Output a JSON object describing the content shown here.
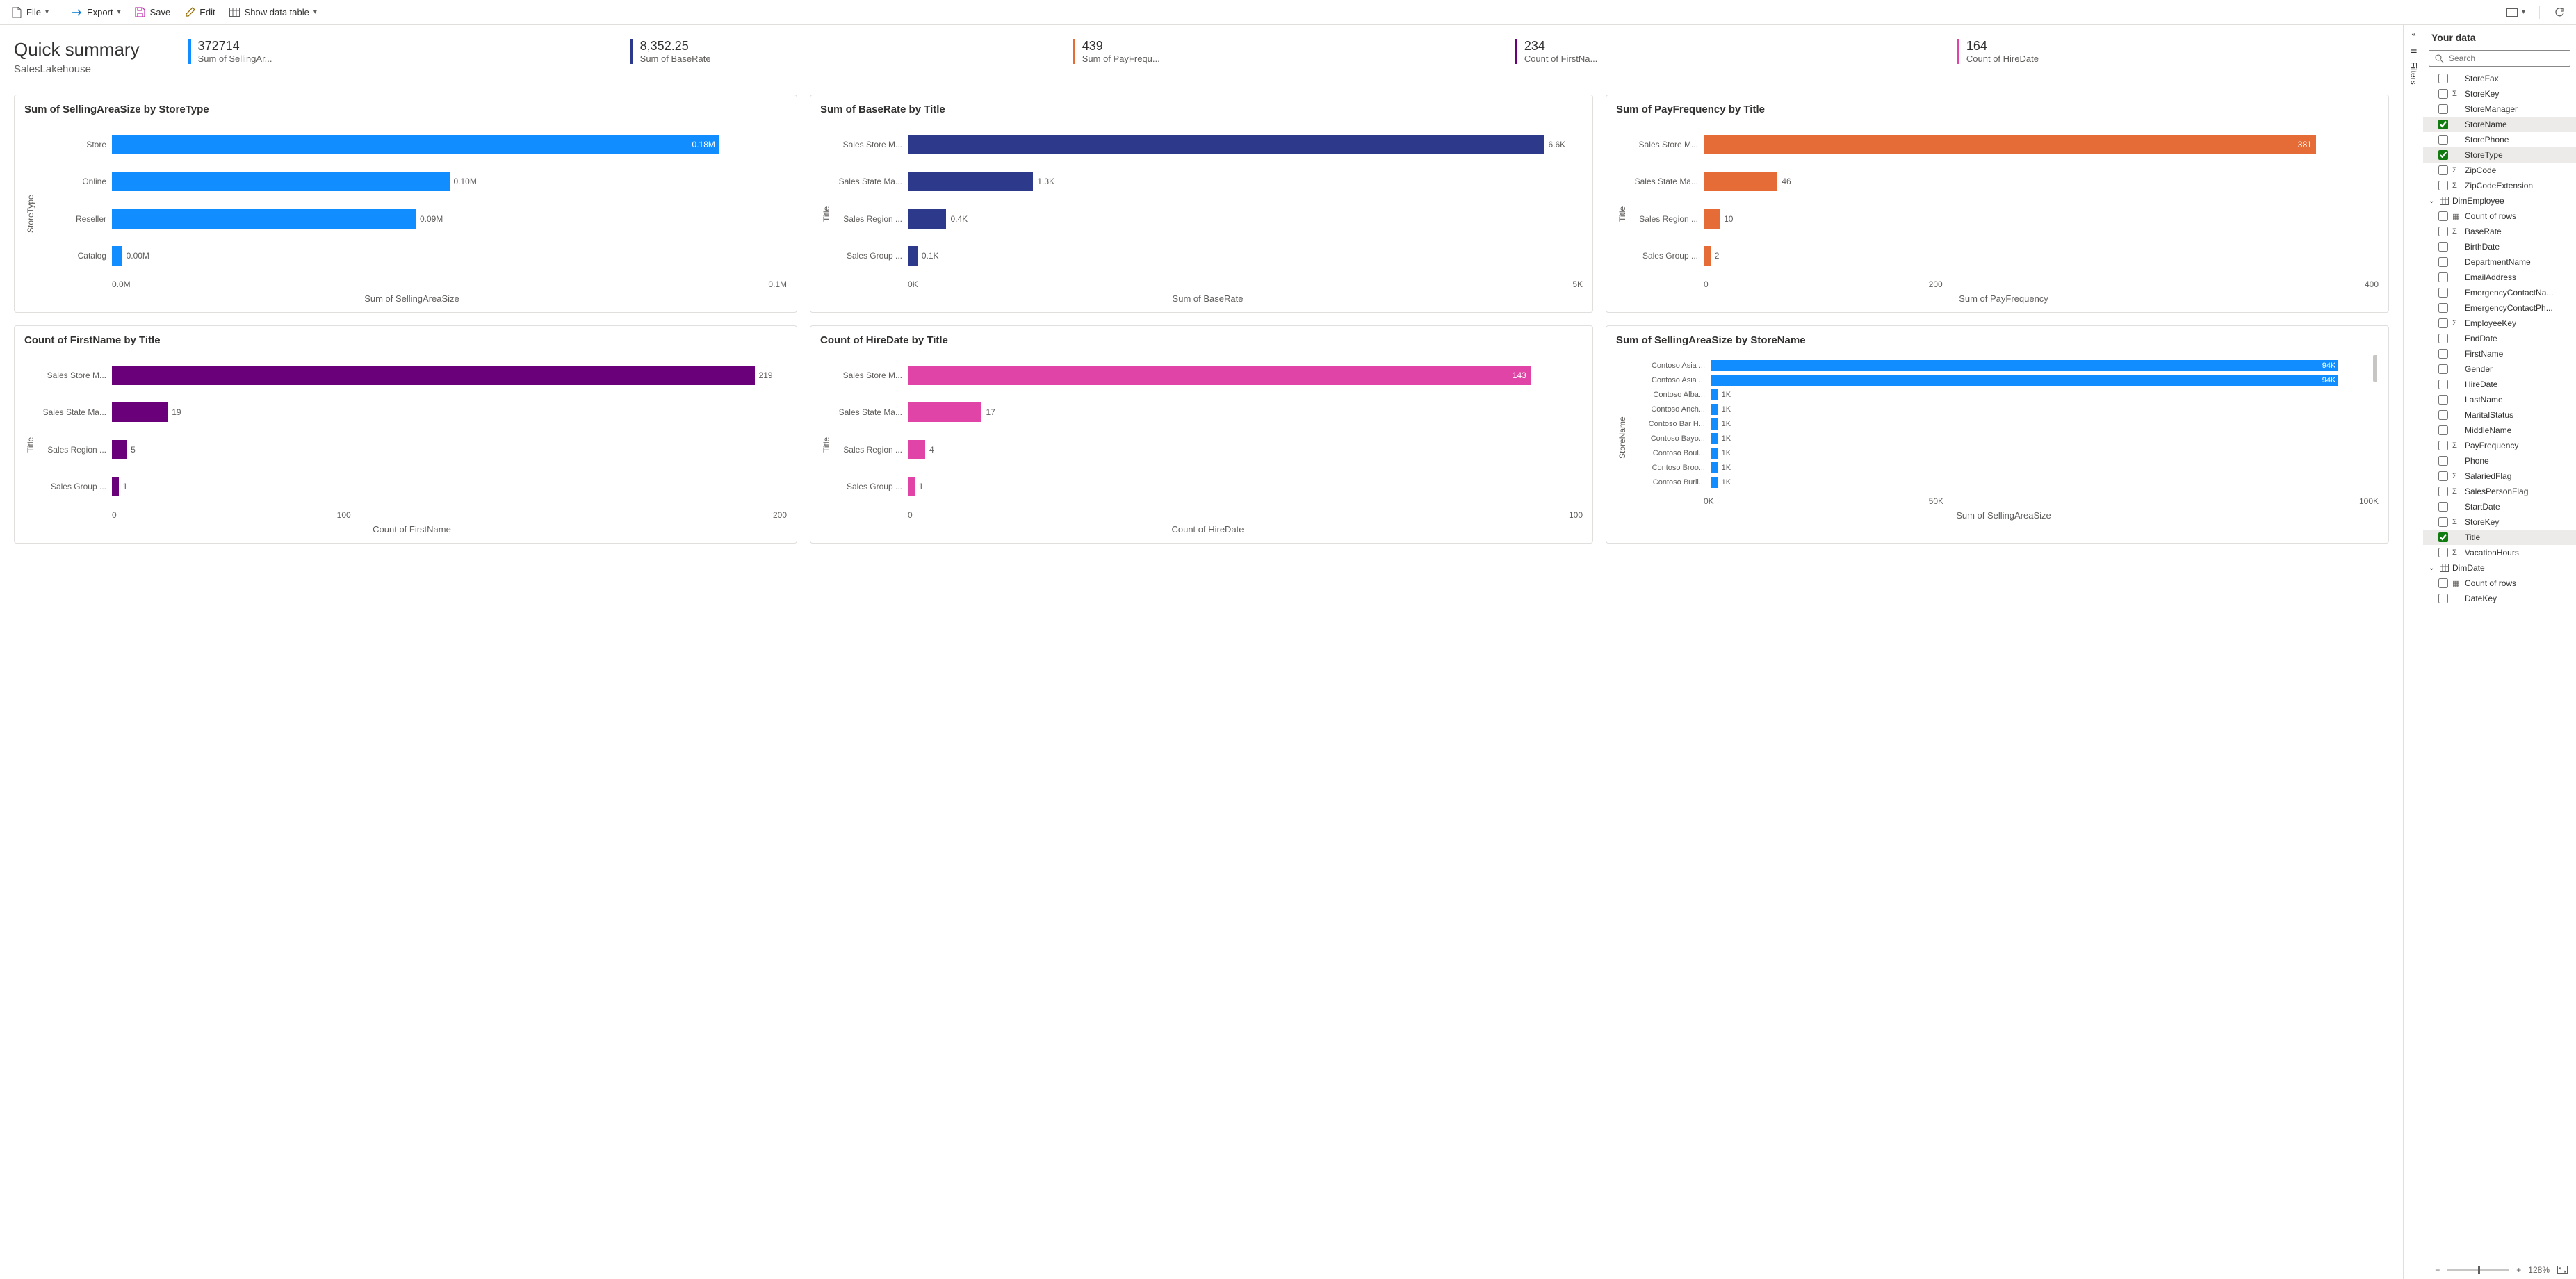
{
  "toolbar": {
    "file": "File",
    "export": "Export",
    "save": "Save",
    "edit": "Edit",
    "show_table": "Show data table"
  },
  "collapsed_panel": {
    "filters_label": "Filters"
  },
  "header": {
    "title": "Quick summary",
    "subtitle": "SalesLakehouse"
  },
  "kpis": [
    {
      "value": "372714",
      "label": "Sum of SellingAr...",
      "color": "#118dff"
    },
    {
      "value": "8,352.25",
      "label": "Sum of BaseRate",
      "color": "#2d3a8c"
    },
    {
      "value": "439",
      "label": "Sum of PayFrequ...",
      "color": "#e66c37"
    },
    {
      "value": "234",
      "label": "Count of FirstNa...",
      "color": "#6b007b"
    },
    {
      "value": "164",
      "label": "Count of HireDate",
      "color": "#e044a7"
    }
  ],
  "charts": [
    {
      "title": "Sum of SellingAreaSize by StoreType",
      "y_axis": "StoreType",
      "x_axis": "Sum of SellingAreaSize",
      "color": "#118dff",
      "max": 0.2,
      "ticks": [
        "0.0M",
        "0.1M"
      ],
      "bars": [
        {
          "cat": "Store",
          "val": 0.18,
          "label": "0.18M",
          "inside": true
        },
        {
          "cat": "Online",
          "val": 0.1,
          "label": "0.10M",
          "inside": false
        },
        {
          "cat": "Reseller",
          "val": 0.09,
          "label": "0.09M",
          "inside": false
        },
        {
          "cat": "Catalog",
          "val": 0.003,
          "label": "0.00M",
          "inside": false
        }
      ]
    },
    {
      "title": "Sum of BaseRate by Title",
      "y_axis": "Title",
      "x_axis": "Sum of BaseRate",
      "color": "#2d3a8c",
      "max": 7.0,
      "ticks": [
        "0K",
        "5K"
      ],
      "bars": [
        {
          "cat": "Sales Store M...",
          "val": 6.6,
          "label": "6.6K",
          "inside": false
        },
        {
          "cat": "Sales State Ma...",
          "val": 1.3,
          "label": "1.3K",
          "inside": false
        },
        {
          "cat": "Sales Region ...",
          "val": 0.4,
          "label": "0.4K",
          "inside": false
        },
        {
          "cat": "Sales Group ...",
          "val": 0.1,
          "label": "0.1K",
          "inside": false
        }
      ]
    },
    {
      "title": "Sum of PayFrequency by Title",
      "y_axis": "Title",
      "x_axis": "Sum of PayFrequency",
      "color": "#e66c37",
      "max": 420,
      "ticks": [
        "0",
        "200",
        "400"
      ],
      "bars": [
        {
          "cat": "Sales Store M...",
          "val": 381,
          "label": "381",
          "inside": true
        },
        {
          "cat": "Sales State Ma...",
          "val": 46,
          "label": "46",
          "inside": false
        },
        {
          "cat": "Sales Region ...",
          "val": 10,
          "label": "10",
          "inside": false
        },
        {
          "cat": "Sales Group ...",
          "val": 2,
          "label": "2",
          "inside": false
        }
      ]
    },
    {
      "title": "Count of FirstName by Title",
      "y_axis": "Title",
      "x_axis": "Count of FirstName",
      "color": "#6b007b",
      "max": 230,
      "ticks": [
        "0",
        "100",
        "200"
      ],
      "bars": [
        {
          "cat": "Sales Store M...",
          "val": 219,
          "label": "219",
          "inside": false
        },
        {
          "cat": "Sales State Ma...",
          "val": 19,
          "label": "19",
          "inside": false
        },
        {
          "cat": "Sales Region ...",
          "val": 5,
          "label": "5",
          "inside": false
        },
        {
          "cat": "Sales Group ...",
          "val": 1,
          "label": "1",
          "inside": false
        }
      ]
    },
    {
      "title": "Count of HireDate by Title",
      "y_axis": "Title",
      "x_axis": "Count of HireDate",
      "color": "#e044a7",
      "max": 155,
      "ticks": [
        "0",
        "100"
      ],
      "bars": [
        {
          "cat": "Sales Store M...",
          "val": 143,
          "label": "143",
          "inside": true
        },
        {
          "cat": "Sales State Ma...",
          "val": 17,
          "label": "17",
          "inside": false
        },
        {
          "cat": "Sales Region ...",
          "val": 4,
          "label": "4",
          "inside": false
        },
        {
          "cat": "Sales Group ...",
          "val": 1,
          "label": "1",
          "inside": false
        }
      ]
    },
    {
      "title": "Sum of SellingAreaSize by StoreName",
      "y_axis": "StoreName",
      "x_axis": "Sum of SellingAreaSize",
      "color": "#118dff",
      "max": 100,
      "small": true,
      "scroll": true,
      "ticks": [
        "0K",
        "50K",
        "100K"
      ],
      "bars": [
        {
          "cat": "Contoso Asia ...",
          "val": 94,
          "label": "94K",
          "inside": true
        },
        {
          "cat": "Contoso Asia ...",
          "val": 94,
          "label": "94K",
          "inside": true
        },
        {
          "cat": "Contoso Alba...",
          "val": 1,
          "label": "1K",
          "inside": false
        },
        {
          "cat": "Contoso Anch...",
          "val": 1,
          "label": "1K",
          "inside": false
        },
        {
          "cat": "Contoso Bar H...",
          "val": 1,
          "label": "1K",
          "inside": false
        },
        {
          "cat": "Contoso Bayo...",
          "val": 1,
          "label": "1K",
          "inside": false
        },
        {
          "cat": "Contoso Boul...",
          "val": 1,
          "label": "1K",
          "inside": false
        },
        {
          "cat": "Contoso Broo...",
          "val": 1,
          "label": "1K",
          "inside": false
        },
        {
          "cat": "Contoso Burli...",
          "val": 1,
          "label": "1K",
          "inside": false
        }
      ]
    }
  ],
  "data_panel": {
    "title": "Your data",
    "search_placeholder": "Search",
    "fields": [
      {
        "type": "field",
        "label": "StoreFax",
        "checked": false,
        "sigma": false,
        "indent": 2
      },
      {
        "type": "field",
        "label": "StoreKey",
        "checked": false,
        "sigma": true,
        "indent": 2
      },
      {
        "type": "field",
        "label": "StoreManager",
        "checked": false,
        "sigma": false,
        "indent": 2
      },
      {
        "type": "field",
        "label": "StoreName",
        "checked": true,
        "sigma": false,
        "indent": 2,
        "selected": true
      },
      {
        "type": "field",
        "label": "StorePhone",
        "checked": false,
        "sigma": false,
        "indent": 2
      },
      {
        "type": "field",
        "label": "StoreType",
        "checked": true,
        "sigma": false,
        "indent": 2,
        "selected": true
      },
      {
        "type": "field",
        "label": "ZipCode",
        "checked": false,
        "sigma": true,
        "indent": 2
      },
      {
        "type": "field",
        "label": "ZipCodeExtension",
        "checked": false,
        "sigma": true,
        "indent": 2
      },
      {
        "type": "table",
        "label": "DimEmployee"
      },
      {
        "type": "field",
        "label": "Count of rows",
        "checked": false,
        "sigma": false,
        "calc": true,
        "indent": 2
      },
      {
        "type": "field",
        "label": "BaseRate",
        "checked": false,
        "sigma": true,
        "indent": 2
      },
      {
        "type": "field",
        "label": "BirthDate",
        "checked": false,
        "sigma": false,
        "indent": 2
      },
      {
        "type": "field",
        "label": "DepartmentName",
        "checked": false,
        "sigma": false,
        "indent": 2
      },
      {
        "type": "field",
        "label": "EmailAddress",
        "checked": false,
        "sigma": false,
        "indent": 2
      },
      {
        "type": "field",
        "label": "EmergencyContactNa...",
        "checked": false,
        "sigma": false,
        "indent": 2
      },
      {
        "type": "field",
        "label": "EmergencyContactPh...",
        "checked": false,
        "sigma": false,
        "indent": 2
      },
      {
        "type": "field",
        "label": "EmployeeKey",
        "checked": false,
        "sigma": true,
        "indent": 2
      },
      {
        "type": "field",
        "label": "EndDate",
        "checked": false,
        "sigma": false,
        "indent": 2
      },
      {
        "type": "field",
        "label": "FirstName",
        "checked": false,
        "sigma": false,
        "indent": 2
      },
      {
        "type": "field",
        "label": "Gender",
        "checked": false,
        "sigma": false,
        "indent": 2
      },
      {
        "type": "field",
        "label": "HireDate",
        "checked": false,
        "sigma": false,
        "indent": 2
      },
      {
        "type": "field",
        "label": "LastName",
        "checked": false,
        "sigma": false,
        "indent": 2
      },
      {
        "type": "field",
        "label": "MaritalStatus",
        "checked": false,
        "sigma": false,
        "indent": 2
      },
      {
        "type": "field",
        "label": "MiddleName",
        "checked": false,
        "sigma": false,
        "indent": 2
      },
      {
        "type": "field",
        "label": "PayFrequency",
        "checked": false,
        "sigma": true,
        "indent": 2
      },
      {
        "type": "field",
        "label": "Phone",
        "checked": false,
        "sigma": false,
        "indent": 2
      },
      {
        "type": "field",
        "label": "SalariedFlag",
        "checked": false,
        "sigma": true,
        "indent": 2
      },
      {
        "type": "field",
        "label": "SalesPersonFlag",
        "checked": false,
        "sigma": true,
        "indent": 2
      },
      {
        "type": "field",
        "label": "StartDate",
        "checked": false,
        "sigma": false,
        "indent": 2
      },
      {
        "type": "field",
        "label": "StoreKey",
        "checked": false,
        "sigma": true,
        "indent": 2
      },
      {
        "type": "field",
        "label": "Title",
        "checked": true,
        "sigma": false,
        "indent": 2,
        "selected": true
      },
      {
        "type": "field",
        "label": "VacationHours",
        "checked": false,
        "sigma": true,
        "indent": 2
      },
      {
        "type": "table",
        "label": "DimDate"
      },
      {
        "type": "field",
        "label": "Count of rows",
        "checked": false,
        "sigma": false,
        "calc": true,
        "indent": 2
      },
      {
        "type": "field",
        "label": "DateKey",
        "checked": false,
        "sigma": false,
        "indent": 2
      }
    ]
  },
  "status": {
    "zoom": "128%"
  },
  "colors": {
    "save_icon": "#c239b3",
    "edit_icon": "#986f0b",
    "export_icon": "#0078d4",
    "table_icon": "#605e5c"
  }
}
